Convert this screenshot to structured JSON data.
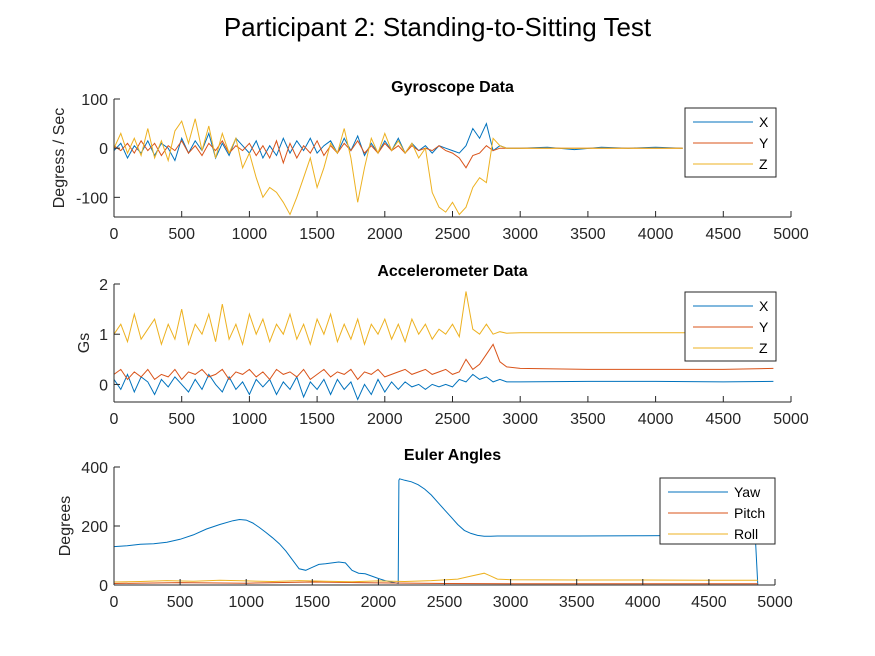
{
  "figure_title": "Participant 2: Standing-to-Sitting Test",
  "colors": {
    "series1": "#0072BD",
    "series2": "#D95319",
    "series3": "#EDB120",
    "axis": "#262626"
  },
  "chart_data": [
    {
      "type": "line",
      "title": "Gyroscope Data",
      "xlabel": "",
      "ylabel": "Degress / Sec",
      "xlim": [
        0,
        5000
      ],
      "ylim": [
        -140,
        100
      ],
      "xticks": [
        0,
        500,
        1000,
        1500,
        2000,
        2500,
        3000,
        3500,
        4000,
        4500,
        5000
      ],
      "yticks": [
        -100,
        0,
        100
      ],
      "ytick_labels": [
        "-100",
        "0",
        "100"
      ],
      "grid": false,
      "legend_position": "top-right",
      "series": [
        {
          "name": "X",
          "color": "#0072BD",
          "x": [
            0,
            50,
            100,
            150,
            200,
            250,
            300,
            350,
            400,
            450,
            500,
            550,
            600,
            650,
            700,
            750,
            800,
            850,
            900,
            950,
            1000,
            1050,
            1100,
            1150,
            1200,
            1250,
            1300,
            1350,
            1400,
            1450,
            1500,
            1550,
            1600,
            1650,
            1700,
            1750,
            1800,
            1850,
            1900,
            1950,
            2000,
            2050,
            2100,
            2150,
            2200,
            2250,
            2300,
            2350,
            2400,
            2450,
            2500,
            2550,
            2600,
            2650,
            2700,
            2750,
            2800,
            2850,
            2900,
            2950,
            3000,
            3200,
            3400,
            3600,
            3800,
            4000,
            4200
          ],
          "y": [
            -5,
            10,
            -20,
            5,
            -10,
            15,
            -15,
            10,
            0,
            -25,
            20,
            -10,
            15,
            -5,
            30,
            -20,
            10,
            -15,
            20,
            5,
            -10,
            15,
            -20,
            5,
            -15,
            20,
            -10,
            15,
            -5,
            20,
            -10,
            5,
            15,
            -10,
            20,
            -5,
            25,
            -15,
            10,
            -10,
            15,
            -5,
            20,
            -10,
            10,
            -5,
            5,
            -10,
            5,
            0,
            -5,
            -10,
            5,
            40,
            20,
            50,
            -5,
            5,
            0,
            0,
            0,
            2,
            -3,
            2,
            0,
            2,
            0
          ]
        },
        {
          "name": "Y",
          "color": "#D95319",
          "x": [
            0,
            50,
            100,
            150,
            200,
            250,
            300,
            350,
            400,
            450,
            500,
            550,
            600,
            650,
            700,
            750,
            800,
            850,
            900,
            950,
            1000,
            1050,
            1100,
            1150,
            1200,
            1250,
            1300,
            1350,
            1400,
            1450,
            1500,
            1550,
            1600,
            1650,
            1700,
            1750,
            1800,
            1850,
            1900,
            1950,
            2000,
            2050,
            2100,
            2150,
            2200,
            2250,
            2300,
            2350,
            2400,
            2450,
            2500,
            2550,
            2600,
            2650,
            2700,
            2750,
            2800,
            2850,
            2900,
            2950,
            3000,
            3200,
            3400,
            3600,
            3800,
            4000,
            4200
          ],
          "y": [
            5,
            -5,
            10,
            -10,
            15,
            -5,
            10,
            -15,
            5,
            -5,
            15,
            -10,
            5,
            -15,
            10,
            -5,
            15,
            -10,
            5,
            -5,
            10,
            -15,
            5,
            -20,
            15,
            -30,
            10,
            -20,
            5,
            -10,
            15,
            -15,
            5,
            -10,
            10,
            -5,
            15,
            -10,
            5,
            -10,
            10,
            -5,
            5,
            -10,
            5,
            -5,
            0,
            -5,
            5,
            -5,
            -10,
            -20,
            -40,
            -15,
            -10,
            5,
            -5,
            0,
            0,
            0,
            0,
            0,
            0,
            0,
            0,
            0,
            0
          ]
        },
        {
          "name": "Z",
          "color": "#EDB120",
          "x": [
            0,
            50,
            100,
            150,
            200,
            250,
            300,
            350,
            400,
            450,
            500,
            550,
            600,
            650,
            700,
            750,
            800,
            850,
            900,
            950,
            1000,
            1050,
            1100,
            1150,
            1200,
            1250,
            1300,
            1350,
            1400,
            1450,
            1500,
            1550,
            1600,
            1650,
            1700,
            1750,
            1800,
            1850,
            1900,
            1950,
            2000,
            2050,
            2100,
            2150,
            2200,
            2250,
            2300,
            2350,
            2400,
            2450,
            2500,
            2550,
            2600,
            2650,
            2700,
            2750,
            2800,
            2850,
            2900,
            2950,
            3000,
            3200,
            3400,
            3600,
            3800,
            4000,
            4200
          ],
          "y": [
            0,
            30,
            -10,
            20,
            -15,
            40,
            -20,
            15,
            -25,
            35,
            55,
            10,
            60,
            -5,
            45,
            -20,
            30,
            -10,
            20,
            -40,
            -10,
            -60,
            -100,
            -80,
            -90,
            -110,
            -135,
            -100,
            -60,
            -20,
            -80,
            -40,
            10,
            -10,
            40,
            -20,
            -110,
            -40,
            20,
            -10,
            30,
            -5,
            15,
            -10,
            10,
            -20,
            0,
            -90,
            -120,
            -130,
            -110,
            -135,
            -120,
            -80,
            -60,
            -70,
            20,
            5,
            0,
            0,
            0,
            0,
            0,
            0,
            0,
            0,
            0
          ]
        }
      ]
    },
    {
      "type": "line",
      "title": "Accelerometer Data",
      "xlabel": "",
      "ylabel": "Gs",
      "xlim": [
        0,
        5000
      ],
      "ylim": [
        -0.35,
        2
      ],
      "xticks": [
        0,
        500,
        1000,
        1500,
        2000,
        2500,
        3000,
        3500,
        4000,
        4500,
        5000
      ],
      "yticks": [
        0,
        1,
        2
      ],
      "ytick_labels": [
        "0",
        "1",
        "2"
      ],
      "grid": false,
      "legend_position": "top-right",
      "series": [
        {
          "name": "X",
          "color": "#0072BD",
          "x": [
            0,
            50,
            100,
            150,
            200,
            250,
            300,
            350,
            400,
            450,
            500,
            550,
            600,
            650,
            700,
            750,
            800,
            850,
            900,
            950,
            1000,
            1050,
            1100,
            1150,
            1200,
            1250,
            1300,
            1350,
            1400,
            1450,
            1500,
            1550,
            1600,
            1650,
            1700,
            1750,
            1800,
            1850,
            1900,
            1950,
            2000,
            2050,
            2100,
            2150,
            2200,
            2250,
            2300,
            2350,
            2400,
            2450,
            2500,
            2550,
            2600,
            2650,
            2700,
            2750,
            2800,
            2850,
            2900,
            3000,
            3500,
            4000,
            4500,
            4870
          ],
          "y": [
            0.1,
            -0.1,
            0.2,
            -0.15,
            0.15,
            0.05,
            -0.2,
            0.1,
            -0.05,
            0.15,
            0,
            -0.15,
            0.1,
            -0.1,
            0.2,
            0,
            -0.15,
            0.15,
            -0.1,
            0.05,
            -0.2,
            0.1,
            -0.05,
            0.1,
            -0.2,
            0.05,
            -0.1,
            0.15,
            -0.25,
            0.05,
            -0.1,
            0.1,
            -0.2,
            0.1,
            -0.1,
            0.05,
            -0.3,
            0,
            -0.2,
            0.1,
            -0.15,
            0.05,
            -0.1,
            0.05,
            -0.05,
            0,
            -0.1,
            0,
            -0.05,
            0,
            -0.05,
            0.1,
            0.05,
            0.2,
            0.1,
            0.15,
            0.05,
            0.1,
            0.05,
            0.05,
            0.06,
            0.06,
            0.05,
            0.06
          ]
        },
        {
          "name": "Y",
          "color": "#D95319",
          "x": [
            0,
            50,
            100,
            150,
            200,
            250,
            300,
            350,
            400,
            450,
            500,
            550,
            600,
            650,
            700,
            750,
            800,
            850,
            900,
            950,
            1000,
            1050,
            1100,
            1150,
            1200,
            1250,
            1300,
            1350,
            1400,
            1450,
            1500,
            1550,
            1600,
            1650,
            1700,
            1750,
            1800,
            1850,
            1900,
            1950,
            2000,
            2050,
            2100,
            2150,
            2200,
            2250,
            2300,
            2350,
            2400,
            2450,
            2500,
            2550,
            2600,
            2650,
            2700,
            2750,
            2800,
            2850,
            2900,
            3000,
            3500,
            4000,
            4500,
            4870
          ],
          "y": [
            0.2,
            0.3,
            0.1,
            0.25,
            0.15,
            0.3,
            0.1,
            0.2,
            0.15,
            0.3,
            0.1,
            0.25,
            0.2,
            0.3,
            0.15,
            0.2,
            0.3,
            0.1,
            0.25,
            0.2,
            0.3,
            0.15,
            0.25,
            0.1,
            0.3,
            0.2,
            0.25,
            0.15,
            0.3,
            0.1,
            0.2,
            0.3,
            0.15,
            0.25,
            0.2,
            0.3,
            0.1,
            0.25,
            0.2,
            0.3,
            0.15,
            0.2,
            0.25,
            0.3,
            0.2,
            0.25,
            0.3,
            0.2,
            0.25,
            0.3,
            0.2,
            0.25,
            0.5,
            0.3,
            0.4,
            0.6,
            0.8,
            0.45,
            0.35,
            0.32,
            0.3,
            0.3,
            0.3,
            0.32
          ]
        },
        {
          "name": "Z",
          "color": "#EDB120",
          "x": [
            0,
            50,
            100,
            150,
            200,
            250,
            300,
            350,
            400,
            450,
            500,
            550,
            600,
            650,
            700,
            750,
            800,
            850,
            900,
            950,
            1000,
            1050,
            1100,
            1150,
            1200,
            1250,
            1300,
            1350,
            1400,
            1450,
            1500,
            1550,
            1600,
            1650,
            1700,
            1750,
            1800,
            1850,
            1900,
            1950,
            2000,
            2050,
            2100,
            2150,
            2200,
            2250,
            2300,
            2350,
            2400,
            2450,
            2500,
            2550,
            2600,
            2650,
            2700,
            2750,
            2800,
            2850,
            2900,
            3000,
            3500,
            4000,
            4500,
            4870
          ],
          "y": [
            1,
            1.2,
            0.85,
            1.4,
            0.9,
            1.1,
            1.3,
            0.8,
            1.2,
            0.9,
            1.5,
            0.8,
            1.2,
            1.0,
            1.4,
            0.85,
            1.6,
            0.9,
            1.2,
            0.8,
            1.4,
            1.0,
            1.3,
            0.85,
            1.2,
            1.0,
            1.4,
            0.9,
            1.2,
            0.8,
            1.3,
            1.0,
            1.4,
            0.85,
            1.2,
            0.9,
            1.3,
            0.8,
            1.2,
            1.0,
            1.3,
            0.9,
            1.2,
            0.85,
            1.3,
            1.0,
            1.2,
            0.9,
            1.1,
            1.0,
            1.2,
            0.95,
            1.85,
            1.1,
            1.0,
            1.2,
            1.0,
            1.05,
            1.02,
            1.03,
            1.03,
            1.03,
            1.03,
            1.03
          ]
        }
      ]
    },
    {
      "type": "line",
      "title": "Euler Angles",
      "xlabel": "",
      "ylabel": "Degrees",
      "xlim": [
        0,
        5000
      ],
      "ylim": [
        0,
        400
      ],
      "xticks": [
        0,
        500,
        1000,
        1500,
        2000,
        2500,
        3000,
        3500,
        4000,
        4500,
        5000
      ],
      "yticks": [
        0,
        200,
        400
      ],
      "ytick_labels": [
        "0",
        "200",
        "400"
      ],
      "grid": false,
      "legend_position": "top-right",
      "series": [
        {
          "name": "Yaw",
          "color": "#0072BD",
          "x": [
            0,
            100,
            200,
            300,
            400,
            500,
            600,
            700,
            800,
            900,
            950,
            1000,
            1050,
            1100,
            1150,
            1200,
            1250,
            1300,
            1350,
            1400,
            1450,
            1500,
            1550,
            1600,
            1650,
            1700,
            1750,
            1800,
            1850,
            1900,
            1950,
            2000,
            2050,
            2100,
            2150,
            2155,
            2160,
            2200,
            2250,
            2300,
            2350,
            2400,
            2450,
            2500,
            2550,
            2600,
            2650,
            2700,
            2750,
            2800,
            2850,
            2900,
            3000,
            3500,
            4000,
            4500,
            4800,
            4850,
            4870
          ],
          "y": [
            130,
            133,
            138,
            140,
            145,
            155,
            170,
            190,
            205,
            218,
            222,
            220,
            210,
            195,
            178,
            160,
            140,
            115,
            85,
            55,
            50,
            60,
            70,
            72,
            75,
            78,
            75,
            50,
            40,
            38,
            30,
            22,
            15,
            10,
            5,
            355,
            360,
            355,
            350,
            340,
            325,
            305,
            280,
            255,
            230,
            205,
            185,
            175,
            168,
            165,
            165,
            166,
            166,
            166,
            167,
            168,
            170,
            170,
            0
          ]
        },
        {
          "name": "Pitch",
          "color": "#D95319",
          "x": [
            0,
            500,
            1000,
            1500,
            2000,
            2500,
            3000,
            3500,
            4000,
            4500,
            4870
          ],
          "y": [
            5,
            8,
            6,
            10,
            7,
            5,
            4,
            4,
            4,
            4,
            4
          ]
        },
        {
          "name": "Roll",
          "color": "#EDB120",
          "x": [
            0,
            200,
            400,
            600,
            800,
            1000,
            1200,
            1400,
            1600,
            1800,
            2000,
            2200,
            2400,
            2600,
            2700,
            2800,
            2850,
            2900,
            3000,
            3500,
            4000,
            4500,
            4870
          ],
          "y": [
            10,
            12,
            15,
            13,
            16,
            14,
            12,
            15,
            13,
            11,
            14,
            12,
            15,
            20,
            30,
            40,
            30,
            20,
            18,
            17,
            17,
            16,
            16
          ]
        }
      ]
    }
  ]
}
